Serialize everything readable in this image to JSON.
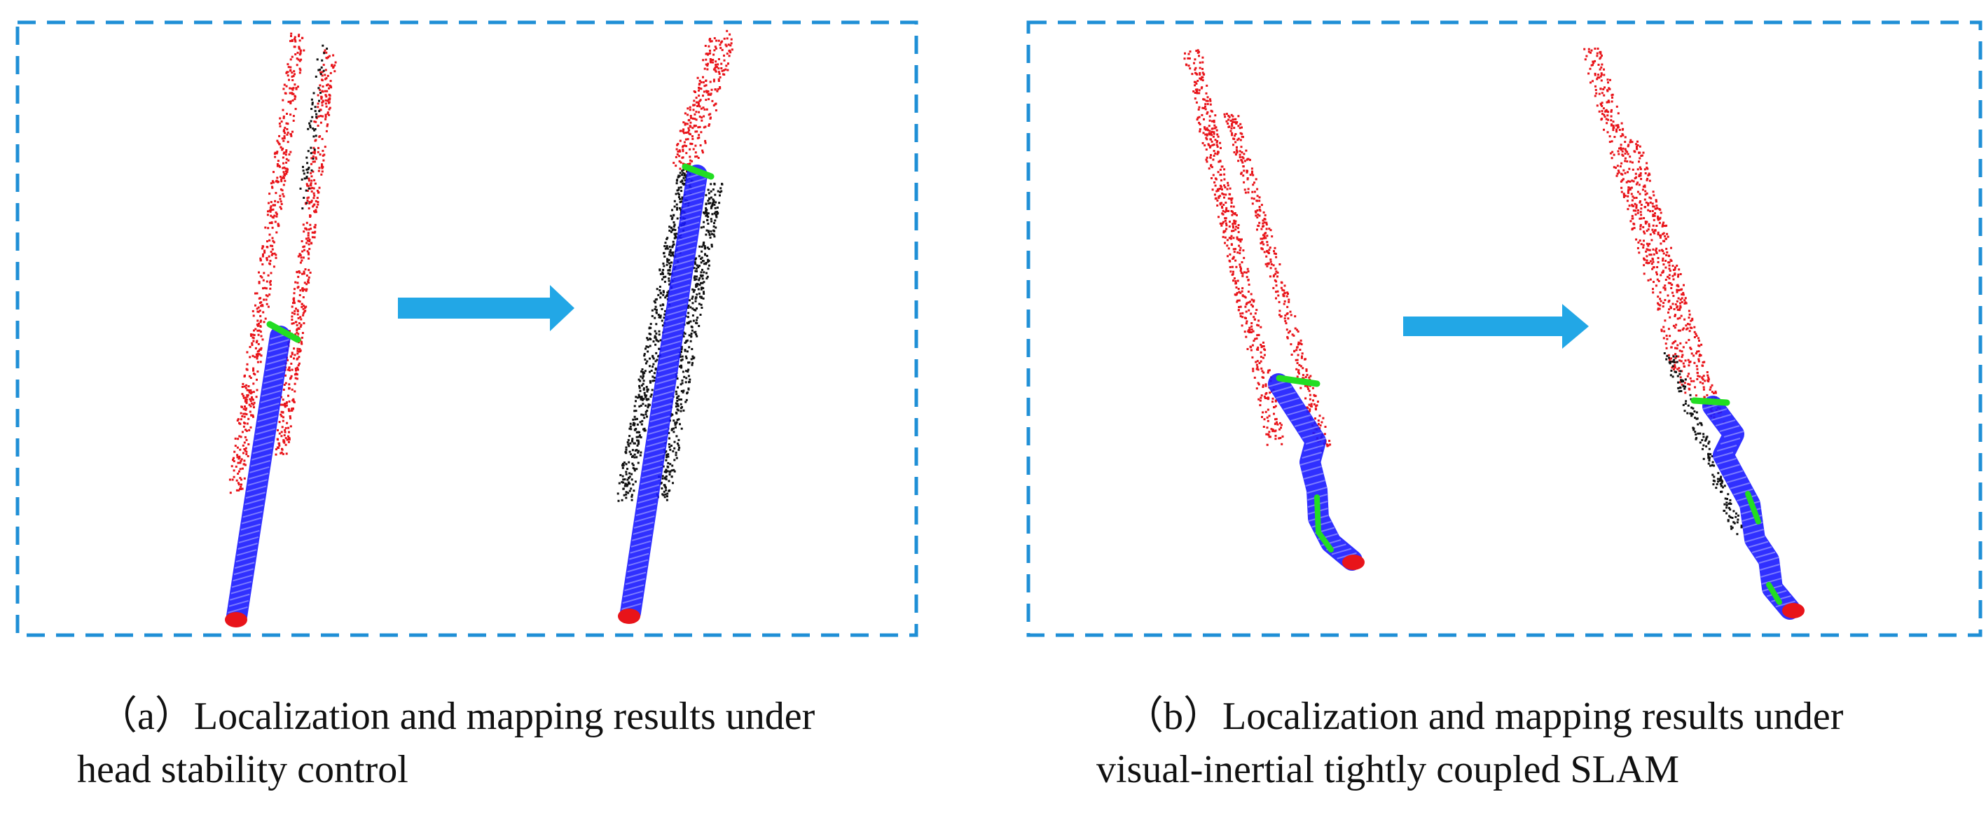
{
  "colors": {
    "frame": "#1f8fd6",
    "arrow": "#22a7e6",
    "mapped_points": "#e8141a",
    "unmapped_points": "#111111",
    "trajectory": "#1a1aff",
    "trajectory_highlight": "#22dd22",
    "start_marker": "#e8141a"
  },
  "panels": [
    {
      "id": "a",
      "caption_line1": "（a）Localization and mapping results under",
      "caption_line2": "head stability control",
      "before_label": "",
      "after_label": ""
    },
    {
      "id": "b",
      "caption_line1": "（b）Localization and mapping results under",
      "caption_line2": "visual-inertial tightly coupled SLAM",
      "before_label": "",
      "after_label": ""
    }
  ]
}
